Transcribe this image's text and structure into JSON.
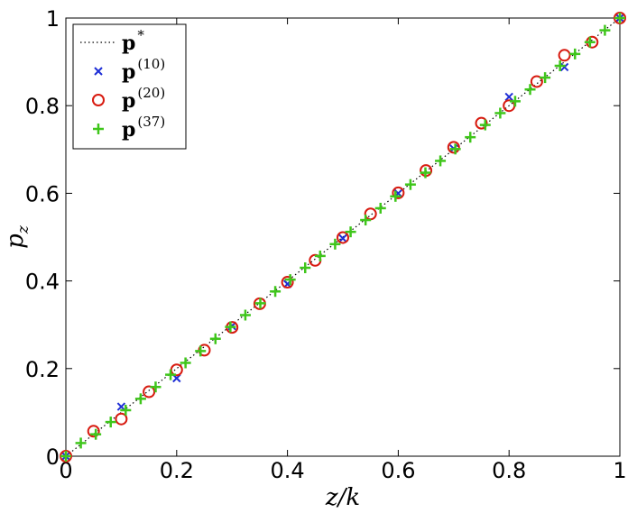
{
  "chart_data": {
    "type": "scatter",
    "xlabel": "z/k",
    "ylabel": "p_z",
    "xlim": [
      0,
      1
    ],
    "ylim": [
      0,
      1
    ],
    "x_ticks": [
      "0",
      "0.2",
      "0.4",
      "0.6",
      "0.8",
      "1"
    ],
    "y_ticks": [
      "0",
      "0.2",
      "0.4",
      "0.6",
      "0.8",
      "1"
    ],
    "grid": false,
    "legend_position": "top-left",
    "series": [
      {
        "name": "p*",
        "label_base": "p",
        "label_sup": "*",
        "style": "dotted-line",
        "color": "#000000",
        "x": [
          0,
          1
        ],
        "y": [
          0,
          1
        ]
      },
      {
        "name": "p(10)",
        "label_base": "p",
        "label_sup": "(10)",
        "marker": "x",
        "color": "#1f2fd6",
        "x": [
          0,
          0.1,
          0.2,
          0.3,
          0.4,
          0.5,
          0.6,
          0.7,
          0.8,
          0.9,
          1.0
        ],
        "y": [
          0,
          0.113,
          0.178,
          0.297,
          0.393,
          0.497,
          0.6,
          0.702,
          0.82,
          0.888,
          1.0
        ]
      },
      {
        "name": "p(20)",
        "label_base": "p",
        "label_sup": "(20)",
        "marker": "o",
        "color": "#d81b10",
        "x": [
          0,
          0.05,
          0.1,
          0.15,
          0.2,
          0.25,
          0.3,
          0.35,
          0.4,
          0.45,
          0.5,
          0.55,
          0.6,
          0.65,
          0.7,
          0.75,
          0.8,
          0.85,
          0.9,
          0.95,
          1.0
        ],
        "y": [
          0,
          0.057,
          0.085,
          0.147,
          0.197,
          0.242,
          0.294,
          0.348,
          0.397,
          0.447,
          0.499,
          0.553,
          0.601,
          0.652,
          0.705,
          0.76,
          0.8,
          0.855,
          0.915,
          0.945,
          1.0
        ]
      },
      {
        "name": "p(37)",
        "label_base": "p",
        "label_sup": "(37)",
        "marker": "+",
        "color": "#3fc61b",
        "x": [
          0,
          0.027,
          0.054,
          0.081,
          0.108,
          0.135,
          0.162,
          0.189,
          0.216,
          0.243,
          0.27,
          0.297,
          0.324,
          0.351,
          0.378,
          0.405,
          0.432,
          0.459,
          0.486,
          0.514,
          0.541,
          0.568,
          0.595,
          0.622,
          0.649,
          0.676,
          0.703,
          0.73,
          0.757,
          0.784,
          0.811,
          0.838,
          0.865,
          0.892,
          0.919,
          0.946,
          0.973,
          1.0
        ],
        "y": [
          0,
          0.03,
          0.05,
          0.078,
          0.105,
          0.131,
          0.158,
          0.186,
          0.213,
          0.24,
          0.268,
          0.295,
          0.322,
          0.349,
          0.376,
          0.403,
          0.43,
          0.457,
          0.484,
          0.512,
          0.539,
          0.566,
          0.593,
          0.62,
          0.647,
          0.674,
          0.701,
          0.728,
          0.756,
          0.783,
          0.81,
          0.837,
          0.864,
          0.891,
          0.918,
          0.945,
          0.972,
          1.0
        ]
      }
    ]
  }
}
